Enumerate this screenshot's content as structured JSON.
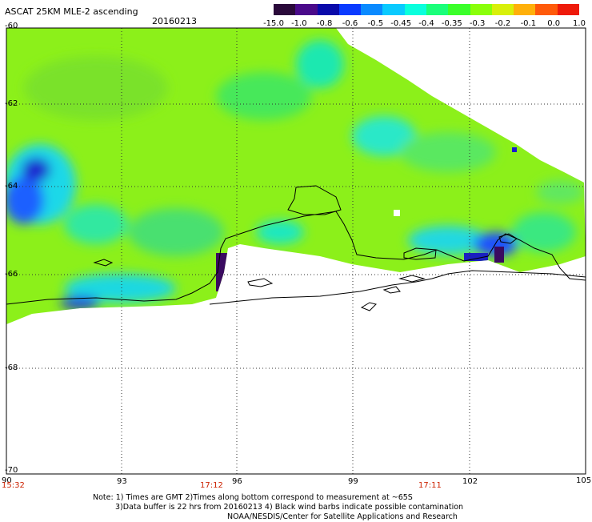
{
  "header": {
    "title": "ASCAT 25KM MLE-2 ascending",
    "date": "20160213"
  },
  "colorbar": {
    "labels": [
      "-15.0",
      "-1.0",
      "-0.8",
      "-0.6",
      "-0.5",
      "-0.45",
      "-0.4",
      "-0.35",
      "-0.3",
      "-0.2",
      "-0.1",
      "0.0",
      "1.0"
    ],
    "colors": [
      "#2a0a3a",
      "#4a0a8a",
      "#0a0aaa",
      "#0a3aff",
      "#0a8aff",
      "#0acaff",
      "#0affdd",
      "#1aff7a",
      "#3aff2a",
      "#8aff0a",
      "#d8f00a",
      "#ffb00a",
      "#ff5a0a",
      "#ee1a0a"
    ]
  },
  "axes": {
    "lat_labels": [
      "-60",
      "-62",
      "-64",
      "-66",
      "-68",
      "-70"
    ],
    "lon_labels": [
      "90",
      "93",
      "96",
      "99",
      "102",
      "105"
    ],
    "times": [
      "15:32",
      "17:12",
      "17:11"
    ]
  },
  "notes": {
    "line1": "Note: 1) Times are GMT 2)Times along bottom correspond to measurement at ~65S",
    "line2": "3)Data buffer is 22 hrs from 20160213 4) Black wind barbs indicate possible contamination",
    "line3": "NOAA/NESDIS/Center for Satellite Applications and Research"
  }
}
